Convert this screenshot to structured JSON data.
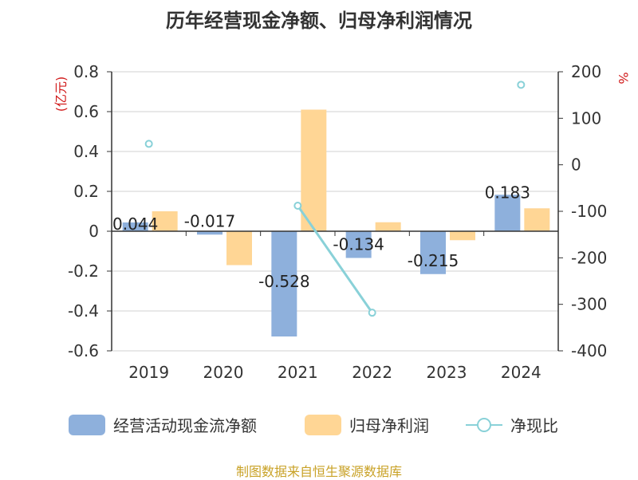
{
  "chart_data": {
    "type": "bar",
    "title": "历年经营现金净额、归母净利润情况",
    "categories": [
      "2019",
      "2020",
      "2021",
      "2022",
      "2023",
      "2024"
    ],
    "y_left": {
      "unit_label": "(亿元)",
      "ylim": [
        -0.6,
        0.8
      ],
      "ticks": [
        "0.8",
        "0.6",
        "0.4",
        "0.2",
        "0",
        "-0.2",
        "-0.4",
        "-0.6"
      ]
    },
    "y_right": {
      "unit_label": "%",
      "ylim": [
        -400,
        200
      ],
      "ticks": [
        "200",
        "100",
        "0",
        "-100",
        "-200",
        "-300",
        "-400"
      ]
    },
    "series": [
      {
        "name": "经营活动现金流净额",
        "type": "bar",
        "axis": "left",
        "color": "#8eb0dc",
        "values": [
          0.044,
          -0.017,
          -0.528,
          -0.134,
          -0.215,
          0.183
        ],
        "labels": [
          "0.044",
          "-0.017",
          "-0.528",
          "-0.134",
          "-0.215",
          "0.183"
        ]
      },
      {
        "name": "归母净利润",
        "type": "bar",
        "axis": "left",
        "color": "#ffd695",
        "values": [
          0.1,
          -0.17,
          0.61,
          0.045,
          -0.045,
          0.115
        ]
      },
      {
        "name": "净现比",
        "type": "line",
        "axis": "right",
        "color": "#89d1d8",
        "values": [
          45,
          null,
          -88,
          -318,
          null,
          172
        ]
      }
    ],
    "legend_position": "bottom"
  },
  "source": "制图数据来自恒生聚源数据库"
}
